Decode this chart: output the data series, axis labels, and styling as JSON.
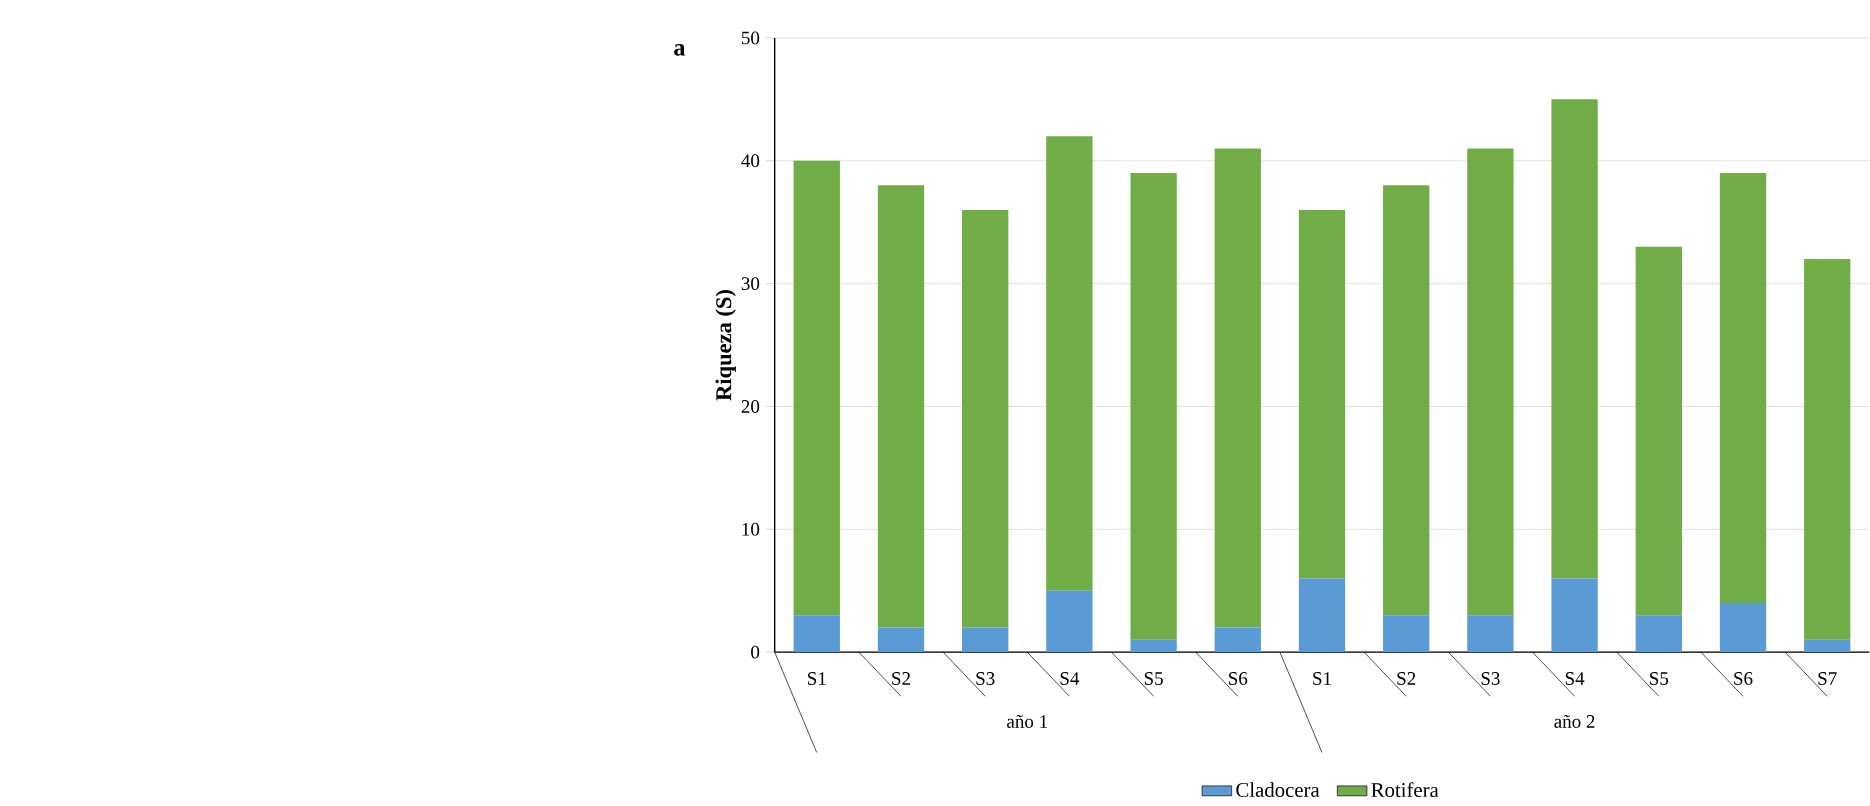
{
  "chart_data": {
    "type": "bar",
    "stacked": true,
    "ylabel": "Riqueza (S)",
    "categories": [
      "S1",
      "S2",
      "S3",
      "S4",
      "S5",
      "S6",
      "S1",
      "S2",
      "S3",
      "S4",
      "S5",
      "S6",
      "S7"
    ],
    "series": [
      {
        "name": "Cladocera",
        "color": "#5b9bd5",
        "values": [
          3,
          2,
          2,
          5,
          1,
          2,
          6,
          3,
          3,
          6,
          3,
          4,
          1
        ]
      },
      {
        "name": "Rotifera",
        "color": "#70ad47",
        "values": [
          37,
          36,
          34,
          37,
          38,
          39,
          30,
          35,
          38,
          39,
          30,
          35,
          31
        ]
      }
    ],
    "ylim": [
      0,
      50
    ],
    "yticks": [
      0,
      10,
      20,
      30,
      40,
      50
    ],
    "grid": "y",
    "legend": "bottom",
    "annotations": [
      "a",
      "año 1",
      "año 2"
    ]
  }
}
